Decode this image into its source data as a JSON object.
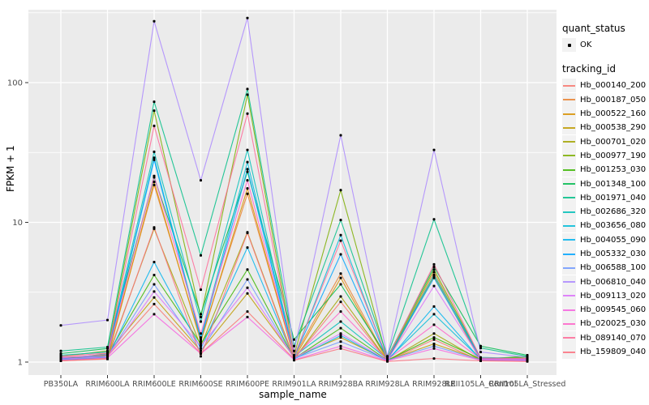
{
  "chart_data": {
    "type": "line",
    "title": "",
    "xlabel": "sample_name",
    "ylabel": "FPKM + 1",
    "y_scale": "log10",
    "y_ticks": [
      1,
      10,
      100
    ],
    "y_minor_ticks": [
      3.162,
      31.62,
      316.2
    ],
    "ylim": [
      0.93,
      333
    ],
    "grid": "on",
    "legend_position": "right",
    "categories": [
      "PB350LA",
      "RRIM600LA",
      "RRIM600LE",
      "RRIM600SE",
      "RRIM600PE",
      "RRIM901LA",
      "RRIM928BA",
      "RRIM928LA",
      "RRIM928LE",
      "RRII105LA_Control",
      "RRII105LA_Stressed"
    ],
    "legend": {
      "quant_status_title": "quant_status",
      "ok_label": "OK",
      "tracking_title": "tracking_id"
    },
    "point_color": "#000000",
    "series": [
      {
        "name": "Hb_000140_200",
        "color": "#F8766D",
        "values": [
          1.05,
          1.1,
          2.6,
          1.15,
          2.3,
          1.05,
          2.7,
          1.02,
          1.45,
          1.02,
          1.03
        ]
      },
      {
        "name": "Hb_000187_050",
        "color": "#EA8331",
        "values": [
          1.08,
          1.12,
          18.5,
          1.45,
          16.0,
          1.1,
          4.3,
          1.04,
          4.4,
          1.03,
          1.05
        ]
      },
      {
        "name": "Hb_000522_160",
        "color": "#D89000",
        "values": [
          1.02,
          1.06,
          19.5,
          1.4,
          17.5,
          1.06,
          4.0,
          1.02,
          4.1,
          1.02,
          1.02
        ]
      },
      {
        "name": "Hb_000538_290",
        "color": "#C09B00",
        "values": [
          1.04,
          1.15,
          2.9,
          1.2,
          3.1,
          1.08,
          1.5,
          1.03,
          1.35,
          1.04,
          1.04
        ]
      },
      {
        "name": "Hb_000701_020",
        "color": "#A3A500",
        "values": [
          1.03,
          1.08,
          9.0,
          1.3,
          8.5,
          1.05,
          2.95,
          1.02,
          1.6,
          1.03,
          1.02
        ]
      },
      {
        "name": "Hb_000977_190",
        "color": "#7CAE00",
        "values": [
          1.1,
          1.2,
          63,
          2.1,
          82,
          1.12,
          17.0,
          1.05,
          4.6,
          1.06,
          1.08
        ]
      },
      {
        "name": "Hb_001253_030",
        "color": "#39B600",
        "values": [
          1.06,
          1.12,
          4.2,
          1.35,
          4.6,
          1.06,
          1.75,
          1.03,
          1.5,
          1.05,
          1.1
        ]
      },
      {
        "name": "Hb_001348_100",
        "color": "#00BB4E",
        "values": [
          1.15,
          1.25,
          21,
          2.2,
          23,
          1.45,
          3.6,
          1.08,
          4.8,
          1.3,
          1.12
        ]
      },
      {
        "name": "Hb_001971_040",
        "color": "#00C087",
        "values": [
          1.2,
          1.28,
          73,
          5.8,
          90,
          1.3,
          10.4,
          1.1,
          10.5,
          1.26,
          1.1
        ]
      },
      {
        "name": "Hb_002686_320",
        "color": "#00C0B8",
        "values": [
          1.12,
          1.18,
          32,
          1.95,
          33,
          1.1,
          1.95,
          1.05,
          4.2,
          1.08,
          1.06
        ]
      },
      {
        "name": "Hb_003656_080",
        "color": "#00BCD8",
        "values": [
          1.05,
          1.1,
          29,
          1.5,
          27,
          1.08,
          8.1,
          1.04,
          2.2,
          1.05,
          1.04
        ]
      },
      {
        "name": "Hb_004055_090",
        "color": "#00B4EF",
        "values": [
          1.04,
          1.08,
          5.2,
          1.25,
          6.6,
          1.05,
          1.55,
          1.02,
          2.5,
          1.04,
          1.03
        ]
      },
      {
        "name": "Hb_005332_030",
        "color": "#00A5FF",
        "values": [
          1.06,
          1.14,
          28,
          1.45,
          24,
          1.09,
          5.9,
          1.05,
          4.0,
          1.06,
          1.05
        ]
      },
      {
        "name": "Hb_006588_100",
        "color": "#7099FF",
        "values": [
          1.08,
          1.1,
          3.6,
          1.2,
          3.9,
          1.06,
          1.4,
          1.03,
          1.3,
          1.04,
          1.03
        ]
      },
      {
        "name": "Hb_006810_040",
        "color": "#AC88FF",
        "values": [
          1.83,
          2.0,
          275,
          20,
          290,
          1.2,
          42,
          1.1,
          33,
          1.18,
          1.08
        ]
      },
      {
        "name": "Hb_009113_020",
        "color": "#DC71FA",
        "values": [
          1.05,
          1.09,
          3.2,
          1.3,
          3.4,
          1.07,
          1.6,
          1.03,
          3.5,
          1.05,
          1.04
        ]
      },
      {
        "name": "Hb_009545_060",
        "color": "#F763E0",
        "values": [
          1.03,
          1.07,
          2.2,
          1.15,
          2.1,
          1.04,
          1.3,
          1.02,
          1.25,
          1.03,
          1.02
        ]
      },
      {
        "name": "Hb_020025_030",
        "color": "#FF61C9",
        "values": [
          1.07,
          1.13,
          21.5,
          1.6,
          20,
          1.08,
          2.3,
          1.04,
          1.85,
          1.05,
          1.05
        ]
      },
      {
        "name": "Hb_089140_070",
        "color": "#FF6A98",
        "values": [
          1.1,
          1.16,
          49,
          3.3,
          60,
          1.1,
          7.4,
          1.06,
          5.0,
          1.07,
          1.06
        ]
      },
      {
        "name": "Hb_159809_040",
        "color": "#FC717F",
        "values": [
          1.02,
          1.05,
          9.2,
          1.1,
          8.4,
          1.03,
          1.25,
          1.01,
          1.06,
          1.02,
          1.01
        ]
      }
    ],
    "panel_bg": "#EBEBEB",
    "grid_color": "#FFFFFF",
    "tick_text_color": "#4D4D4D",
    "tick_mark_color": "#333333"
  }
}
